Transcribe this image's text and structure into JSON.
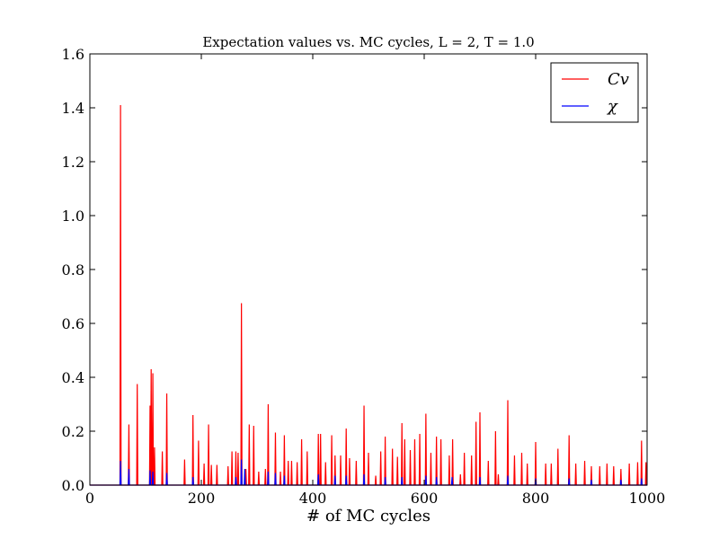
{
  "chart_data": {
    "type": "line",
    "title": "Expectation values vs. MC cycles, L = 2, T = 1.0",
    "xlabel": "# of MC cycles",
    "ylabel": "",
    "xlim": [
      0,
      1000
    ],
    "ylim": [
      0.0,
      1.6
    ],
    "x_ticks": [
      "0",
      "200",
      "400",
      "600",
      "800",
      "1000"
    ],
    "y_ticks": [
      "0.0",
      "0.2",
      "0.4",
      "0.6",
      "0.8",
      "1.0",
      "1.2",
      "1.4",
      "1.6"
    ],
    "grid": false,
    "legend_position": "top-right",
    "series": [
      {
        "name": "Cv",
        "color": "#ff0000",
        "spikes": [
          [
            55,
            1.41
          ],
          [
            70,
            0.225
          ],
          [
            85,
            0.375
          ],
          [
            108,
            0.295
          ],
          [
            110,
            0.43
          ],
          [
            113,
            0.415
          ],
          [
            116,
            0.14
          ],
          [
            130,
            0.125
          ],
          [
            138,
            0.34
          ],
          [
            170,
            0.095
          ],
          [
            185,
            0.26
          ],
          [
            195,
            0.165
          ],
          [
            205,
            0.08
          ],
          [
            213,
            0.225
          ],
          [
            218,
            0.075
          ],
          [
            228,
            0.075
          ],
          [
            248,
            0.07
          ],
          [
            255,
            0.125
          ],
          [
            262,
            0.125
          ],
          [
            266,
            0.12
          ],
          [
            272,
            0.675
          ],
          [
            280,
            0.06
          ],
          [
            286,
            0.225
          ],
          [
            294,
            0.22
          ],
          [
            303,
            0.05
          ],
          [
            315,
            0.06
          ],
          [
            320,
            0.3
          ],
          [
            333,
            0.195
          ],
          [
            342,
            0.05
          ],
          [
            349,
            0.185
          ],
          [
            356,
            0.09
          ],
          [
            362,
            0.09
          ],
          [
            372,
            0.085
          ],
          [
            380,
            0.17
          ],
          [
            390,
            0.125
          ],
          [
            410,
            0.19
          ],
          [
            414,
            0.19
          ],
          [
            423,
            0.085
          ],
          [
            434,
            0.185
          ],
          [
            440,
            0.11
          ],
          [
            450,
            0.11
          ],
          [
            460,
            0.21
          ],
          [
            466,
            0.1
          ],
          [
            478,
            0.09
          ],
          [
            492,
            0.295
          ],
          [
            500,
            0.12
          ],
          [
            513,
            0.035
          ],
          [
            522,
            0.125
          ],
          [
            530,
            0.18
          ],
          [
            543,
            0.135
          ],
          [
            552,
            0.105
          ],
          [
            560,
            0.23
          ],
          [
            565,
            0.17
          ],
          [
            575,
            0.13
          ],
          [
            583,
            0.17
          ],
          [
            592,
            0.19
          ],
          [
            603,
            0.265
          ],
          [
            612,
            0.12
          ],
          [
            622,
            0.18
          ],
          [
            630,
            0.17
          ],
          [
            645,
            0.11
          ],
          [
            651,
            0.17
          ],
          [
            665,
            0.04
          ],
          [
            672,
            0.12
          ],
          [
            685,
            0.11
          ],
          [
            693,
            0.235
          ],
          [
            700,
            0.27
          ],
          [
            715,
            0.09
          ],
          [
            728,
            0.2
          ],
          [
            733,
            0.04
          ],
          [
            750,
            0.315
          ],
          [
            762,
            0.11
          ],
          [
            775,
            0.12
          ],
          [
            785,
            0.08
          ],
          [
            800,
            0.16
          ],
          [
            818,
            0.08
          ],
          [
            828,
            0.08
          ],
          [
            840,
            0.135
          ],
          [
            860,
            0.185
          ],
          [
            872,
            0.08
          ],
          [
            888,
            0.09
          ],
          [
            900,
            0.07
          ],
          [
            915,
            0.07
          ],
          [
            928,
            0.08
          ],
          [
            940,
            0.07
          ],
          [
            953,
            0.06
          ],
          [
            968,
            0.08
          ],
          [
            983,
            0.085
          ],
          [
            990,
            0.165
          ],
          [
            998,
            0.085
          ]
        ]
      },
      {
        "name": "χ",
        "color": "#0000ff",
        "spikes": [
          [
            55,
            0.09
          ],
          [
            70,
            0.06
          ],
          [
            108,
            0.055
          ],
          [
            113,
            0.05
          ],
          [
            138,
            0.045
          ],
          [
            185,
            0.03
          ],
          [
            262,
            0.03
          ],
          [
            272,
            0.095
          ],
          [
            278,
            0.06
          ],
          [
            320,
            0.05
          ],
          [
            333,
            0.045
          ],
          [
            349,
            0.035
          ],
          [
            410,
            0.04
          ],
          [
            440,
            0.035
          ],
          [
            460,
            0.035
          ],
          [
            492,
            0.04
          ],
          [
            530,
            0.03
          ],
          [
            560,
            0.03
          ],
          [
            603,
            0.035
          ],
          [
            622,
            0.03
          ],
          [
            650,
            0.03
          ],
          [
            700,
            0.03
          ],
          [
            750,
            0.035
          ],
          [
            800,
            0.025
          ],
          [
            860,
            0.025
          ],
          [
            900,
            0.02
          ],
          [
            953,
            0.02
          ],
          [
            990,
            0.025
          ]
        ]
      }
    ]
  }
}
